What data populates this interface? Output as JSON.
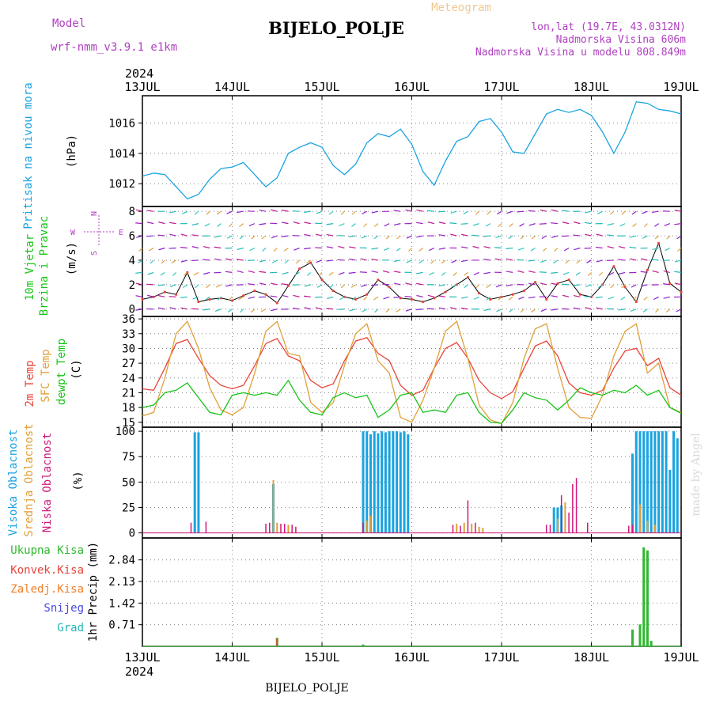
{
  "header": {
    "model_label": "Model",
    "model_name": "wrf-nmm_v3.9.1  e1km",
    "title": "BIJELO_POLJE",
    "chart_kind": "Meteogram",
    "location": "lon,lat (19.7E, 43.0312N)",
    "elevation": "Nadmorska Visina 606m",
    "model_elevation": "Nadmorska Visina u modelu 808.849m",
    "credit": "made by Angel"
  },
  "footer": {
    "station_label": "BIJELO_POLJE"
  },
  "time_axis": {
    "year": "2024",
    "ticks": [
      "13JUL",
      "14JUL",
      "15JUL",
      "16JUL",
      "17JUL",
      "18JUL",
      "19JUL"
    ]
  },
  "colors": {
    "pressure": "#1aa3e0",
    "temp2m": "#e8443a",
    "sfc_temp": "#e0a03a",
    "dewpoint": "#18c418",
    "high_cloud": "#1aa3e0",
    "mid_cloud": "#e0a03a",
    "low_cloud": "#d0187a",
    "precip_total": "#2fb82f",
    "precip_conv": "#e8443a",
    "precip_frozen": "#f07f2a",
    "precip_snow": "#4a4ae0",
    "precip_graupel": "#22b8b8",
    "wind_compass": "#b040c0",
    "grid": "#888888"
  },
  "chart_data": [
    {
      "type": "line",
      "panel": "pressure",
      "ylabel_left": "Pritisak na nivou mora",
      "ylabel_unit": "(hPa)",
      "yticks": [
        "1012",
        "1014",
        "1016"
      ],
      "ylim": [
        1010.5,
        1017.8
      ],
      "xlim": [
        0,
        144
      ],
      "series": [
        {
          "name": "Pritisak na nivou mora",
          "x": [
            0,
            3,
            6,
            9,
            12,
            15,
            18,
            21,
            24,
            27,
            30,
            33,
            36,
            39,
            42,
            45,
            48,
            51,
            54,
            57,
            60,
            63,
            66,
            69,
            72,
            75,
            78,
            81,
            84,
            87,
            90,
            93,
            96,
            99,
            102,
            105,
            108,
            111,
            114,
            117,
            120,
            123,
            126,
            129,
            132,
            135,
            138,
            141,
            144
          ],
          "values": [
            1012.5,
            1012.7,
            1012.6,
            1011.8,
            1011.0,
            1011.3,
            1012.3,
            1013.0,
            1013.1,
            1013.4,
            1012.6,
            1011.8,
            1012.4,
            1014.0,
            1014.4,
            1014.7,
            1014.4,
            1013.2,
            1012.6,
            1013.3,
            1014.7,
            1015.3,
            1015.1,
            1015.6,
            1014.6,
            1012.8,
            1011.9,
            1013.5,
            1014.8,
            1015.1,
            1016.1,
            1016.3,
            1015.4,
            1014.1,
            1014.0,
            1015.3,
            1016.6,
            1016.9,
            1016.7,
            1016.9,
            1016.5,
            1015.4,
            1014.0,
            1015.4,
            1017.4,
            1017.3,
            1016.9,
            1016.8,
            1016.6
          ]
        }
      ]
    },
    {
      "type": "scatter",
      "panel": "wind",
      "ylabel_left_1": "10m Vjetar",
      "ylabel_left_2": "Brzina i Pravac",
      "ylabel_unit": "(m/s)",
      "compass": {
        "n": "N",
        "s": "S",
        "e": "E",
        "w": "W"
      },
      "yticks": [
        "0",
        "2",
        "4",
        "6",
        "8"
      ],
      "ylim": [
        -0.6,
        8.4
      ],
      "xlim": [
        0,
        144
      ],
      "series": [
        {
          "name": "wind speed",
          "x": [
            0,
            3,
            6,
            9,
            12,
            15,
            18,
            21,
            24,
            27,
            30,
            33,
            36,
            39,
            42,
            45,
            48,
            51,
            54,
            57,
            60,
            63,
            66,
            69,
            72,
            75,
            78,
            81,
            84,
            87,
            90,
            93,
            96,
            99,
            102,
            105,
            108,
            111,
            114,
            117,
            120,
            123,
            126,
            129,
            132,
            135,
            138,
            141,
            144
          ],
          "values": [
            0.8,
            1.0,
            1.4,
            1.2,
            3.0,
            0.6,
            0.8,
            0.9,
            0.7,
            1.1,
            1.5,
            1.2,
            0.5,
            1.9,
            3.3,
            3.8,
            2.4,
            1.5,
            1.0,
            0.8,
            1.2,
            2.4,
            1.8,
            0.9,
            0.8,
            0.6,
            0.9,
            1.4,
            2.0,
            2.6,
            1.3,
            0.8,
            1.0,
            1.2,
            1.5,
            2.2,
            0.8,
            2.1,
            2.4,
            1.2,
            1.0,
            2.0,
            3.5,
            1.8,
            0.6,
            3.2,
            5.4,
            2.1,
            1.4
          ]
        }
      ]
    },
    {
      "type": "line",
      "panel": "temperature",
      "ylabel_1": "2m Temp",
      "ylabel_2": "SFC Temp",
      "ylabel_3": "dewpt Temp",
      "ylabel_unit": "(C)",
      "yticks": [
        "15",
        "18",
        "21",
        "24",
        "27",
        "30",
        "33",
        "36"
      ],
      "ylim": [
        14.0,
        36.5
      ],
      "xlim": [
        0,
        144
      ],
      "series": [
        {
          "name": "2m Temp",
          "x": [
            0,
            3,
            6,
            9,
            12,
            15,
            18,
            21,
            24,
            27,
            30,
            33,
            36,
            39,
            42,
            45,
            48,
            51,
            54,
            57,
            60,
            63,
            66,
            69,
            72,
            75,
            78,
            81,
            84,
            87,
            90,
            93,
            96,
            99,
            102,
            105,
            108,
            111,
            114,
            117,
            120,
            123,
            126,
            129,
            132,
            135,
            138,
            141,
            144
          ],
          "values": [
            21.8,
            21.5,
            26.0,
            31.0,
            31.8,
            28.0,
            24.5,
            22.5,
            21.8,
            22.5,
            26.5,
            31.0,
            32.0,
            28.5,
            27.5,
            23.5,
            22.0,
            22.8,
            27.5,
            31.5,
            32.2,
            29.0,
            27.5,
            22.5,
            20.5,
            21.5,
            26.0,
            30.0,
            31.2,
            28.0,
            23.5,
            21.0,
            19.8,
            21.2,
            26.0,
            30.5,
            31.5,
            28.5,
            23.0,
            21.0,
            20.5,
            21.5,
            26.0,
            29.5,
            30.0,
            26.5,
            28.0,
            22.0,
            20.5
          ]
        },
        {
          "name": "SFC Temp",
          "x": [
            0,
            3,
            6,
            9,
            12,
            15,
            18,
            21,
            24,
            27,
            30,
            33,
            36,
            39,
            42,
            45,
            48,
            51,
            54,
            57,
            60,
            63,
            66,
            69,
            72,
            75,
            78,
            81,
            84,
            87,
            90,
            93,
            96,
            99,
            102,
            105,
            108,
            111,
            114,
            117,
            120,
            123,
            126,
            129,
            132,
            135,
            138,
            141,
            144
          ],
          "values": [
            16.3,
            17.0,
            24.0,
            33.0,
            35.5,
            30.0,
            22.0,
            17.5,
            16.5,
            18.0,
            25.0,
            33.5,
            35.5,
            29.0,
            28.5,
            19.0,
            17.0,
            19.0,
            26.5,
            33.0,
            35.0,
            27.5,
            25.0,
            16.0,
            15.0,
            19.5,
            26.0,
            33.5,
            35.5,
            28.0,
            18.5,
            15.5,
            14.7,
            19.0,
            28.0,
            34.0,
            35.0,
            26.0,
            18.0,
            16.0,
            15.8,
            20.5,
            28.5,
            33.5,
            35.0,
            25.0,
            27.0,
            18.0,
            17.0
          ]
        },
        {
          "name": "dewpt Temp",
          "x": [
            0,
            3,
            6,
            9,
            12,
            15,
            18,
            21,
            24,
            27,
            30,
            33,
            36,
            39,
            42,
            45,
            48,
            51,
            54,
            57,
            60,
            63,
            66,
            69,
            72,
            75,
            78,
            81,
            84,
            87,
            90,
            93,
            96,
            99,
            102,
            105,
            108,
            111,
            114,
            117,
            120,
            123,
            126,
            129,
            132,
            135,
            138,
            141,
            144
          ],
          "values": [
            18.0,
            18.5,
            21.0,
            21.5,
            23.0,
            20.0,
            17.0,
            16.5,
            20.5,
            21.0,
            20.5,
            21.0,
            20.5,
            23.5,
            19.5,
            17.0,
            16.5,
            20.0,
            21.0,
            20.0,
            20.5,
            16.0,
            17.5,
            20.5,
            21.0,
            17.0,
            17.5,
            17.0,
            20.5,
            21.0,
            17.0,
            15.0,
            14.8,
            17.5,
            21.0,
            20.0,
            19.5,
            17.5,
            19.5,
            22.0,
            21.0,
            20.5,
            21.5,
            21.0,
            22.5,
            20.5,
            21.5,
            18.0,
            16.8
          ]
        }
      ]
    },
    {
      "type": "bar",
      "panel": "cloud",
      "ylabel_1": "Visoka Oblacnost",
      "ylabel_2": "Srednja Oblacnost",
      "ylabel_3": "Niska Oblacnost",
      "ylabel_unit": "(%)",
      "yticks": [
        "0",
        "25",
        "50",
        "75",
        "100"
      ],
      "ylim": [
        -5,
        104
      ],
      "xlim": [
        0,
        144
      ],
      "series": [
        {
          "name": "Visoka Oblacnost",
          "x": [
            14,
            15,
            35,
            59,
            60,
            61,
            62,
            63,
            64,
            65,
            66,
            67,
            68,
            69,
            70,
            71,
            110,
            111,
            112,
            131,
            132,
            133,
            134,
            135,
            136,
            137,
            138,
            139,
            140,
            141,
            142,
            143
          ],
          "values": [
            99,
            99,
            48,
            100,
            100,
            97,
            100,
            98,
            100,
            99,
            100,
            100,
            100,
            99,
            100,
            97,
            25,
            25,
            27,
            78,
            100,
            100,
            100,
            100,
            100,
            100,
            100,
            100,
            100,
            62,
            100,
            93
          ]
        },
        {
          "name": "Srednja Oblacnost",
          "x": [
            35,
            36,
            39,
            60,
            61,
            84,
            86,
            88,
            90,
            91,
            111,
            113,
            133,
            135,
            137
          ],
          "values": [
            52,
            10,
            8,
            12,
            17,
            9,
            10,
            9,
            6,
            5,
            14,
            30,
            28,
            12,
            8
          ]
        },
        {
          "name": "Niska Oblacnost",
          "x": [
            13,
            17,
            33,
            34,
            37,
            38,
            40,
            41,
            59,
            83,
            85,
            87,
            89,
            108,
            109,
            112,
            114,
            115,
            116,
            119,
            130,
            131
          ],
          "values": [
            10,
            11,
            9,
            10,
            9,
            9,
            8,
            6,
            10,
            8,
            7,
            32,
            10,
            8,
            8,
            37,
            20,
            48,
            54,
            10,
            7,
            8
          ]
        }
      ]
    },
    {
      "type": "bar",
      "panel": "precipitation",
      "ylabel_unit": "1hr Precip (mm)",
      "legend": [
        "Ukupna Kisa",
        "Konvek.Kisa",
        "Zaledj.Kisa",
        "Snijeg",
        "Grad"
      ],
      "yticks": [
        "0.71",
        "1.42",
        "2.13",
        "2.84"
      ],
      "ylim": [
        0,
        3.56
      ],
      "xlim": [
        0,
        144
      ],
      "series": [
        {
          "name": "Ukupna Kisa",
          "x": [
            36,
            59,
            131,
            133,
            134,
            135,
            136
          ],
          "values": [
            0.28,
            0.06,
            0.55,
            0.72,
            3.25,
            3.15,
            0.18
          ]
        },
        {
          "name": "Konvek.Kisa",
          "x": [
            36
          ],
          "values": [
            0.26
          ]
        }
      ]
    }
  ]
}
